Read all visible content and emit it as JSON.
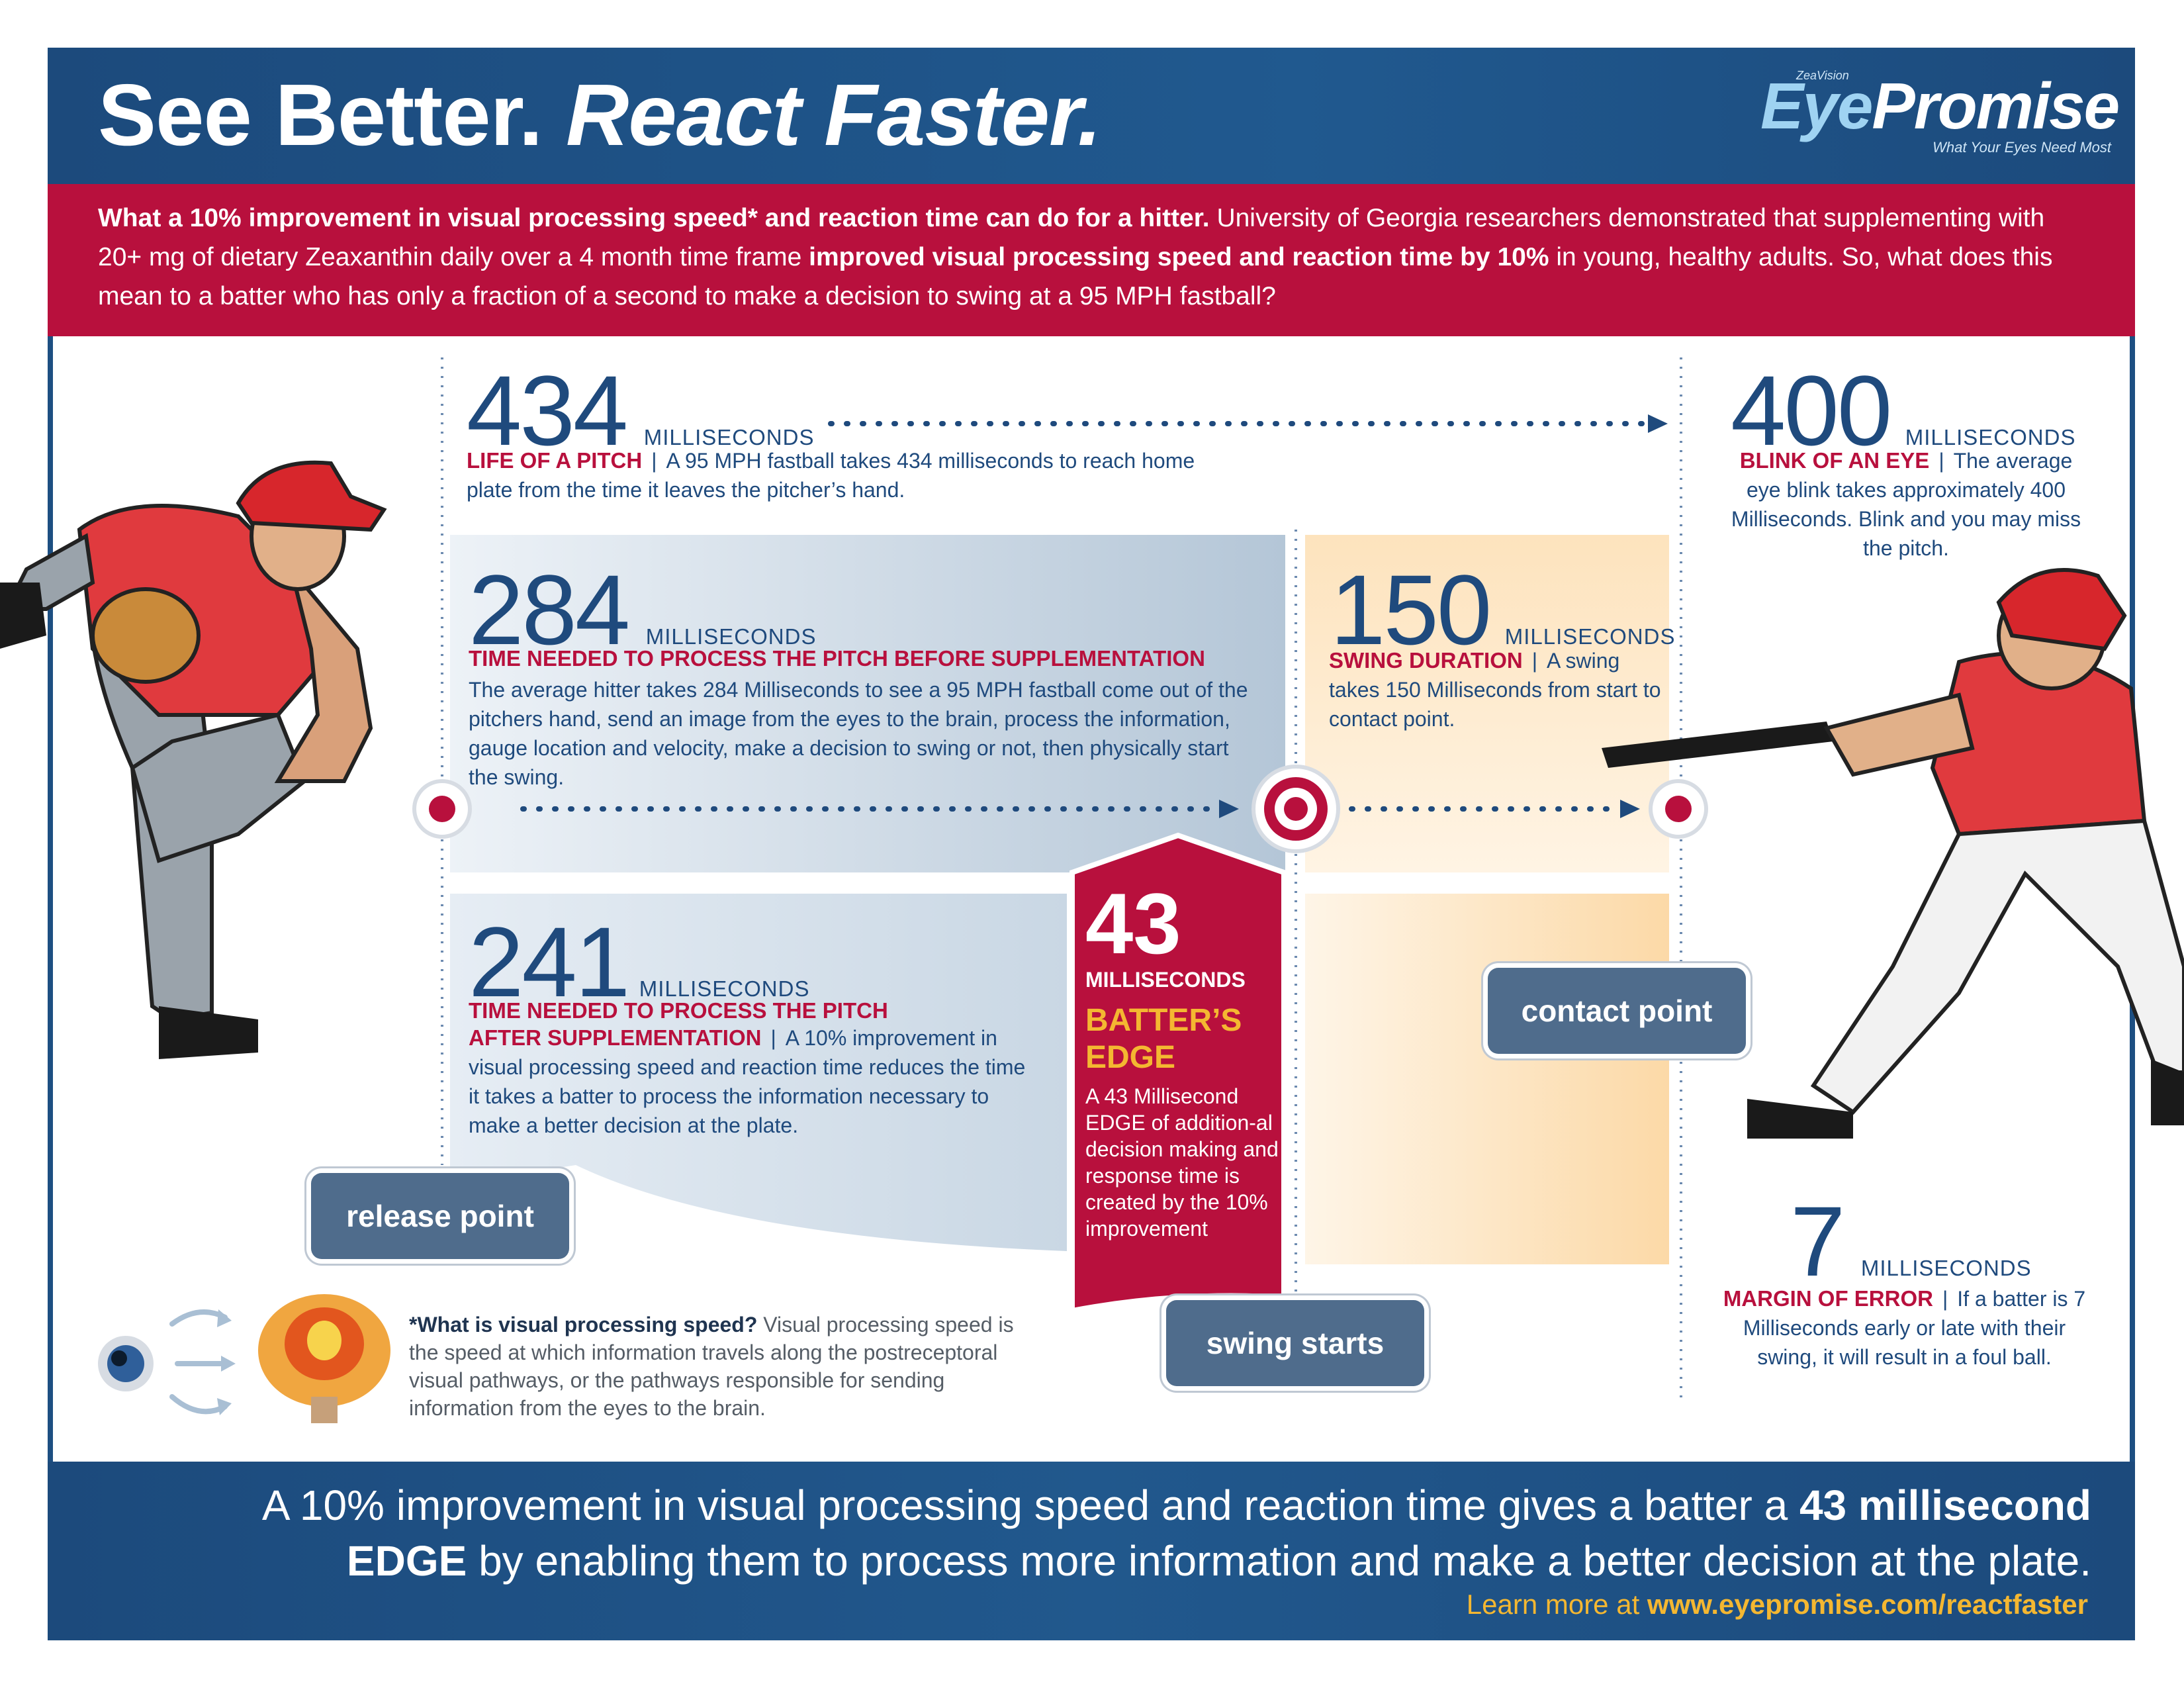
{
  "header": {
    "title_plain": "See Better. ",
    "title_italic": "React Faster.",
    "logo_super": "ZeaVision",
    "logo_brand_eye": "Eye",
    "logo_brand_promise": "Promise",
    "logo_tagline": "What Your Eyes Need Most"
  },
  "intro": {
    "bold_lead": "What a 10% improvement in visual processing speed* and reaction time can do for a hitter.",
    "text_a": " University of Georgia researchers demonstrated that supplementing with 20+ mg of dietary Zeaxanthin daily over a 4 month time frame ",
    "bold_mid": "improved visual processing speed and reaction time by 10%",
    "text_b": " in young, healthy adults. So, what does this mean to a batter who has only a fraction of a second to make a decision to swing at a 95 MPH fastball?"
  },
  "stats": {
    "pitch": {
      "number": "434",
      "unit": "MILLISECONDS",
      "label": "LIFE OF A PITCH",
      "sep": "|",
      "text": "A 95 MPH fastball takes 434 milliseconds to reach home plate from the time it leaves the pitcher’s hand."
    },
    "blink": {
      "number": "400",
      "unit": "MILLISECONDS",
      "label": "BLINK OF AN EYE",
      "sep": "|",
      "text": "The average eye blink takes approximately 400 Milliseconds. Blink and you may miss the pitch."
    },
    "before": {
      "number": "284",
      "unit": "MILLISECONDS",
      "label": "TIME NEEDED TO PROCESS THE PITCH BEFORE SUPPLEMENTATION",
      "text": "The average hitter takes 284 Milliseconds to see a 95 MPH fastball come out of the pitchers hand, send an image from the eyes to the brain, process the information, gauge location and velocity, make a decision to swing or not, then physically start the swing."
    },
    "swing": {
      "number": "150",
      "unit": "MILLISECONDS",
      "label": "SWING DURATION",
      "sep": "|",
      "text": "A swing takes 150 Milliseconds from start to contact point."
    },
    "after": {
      "number": "241",
      "unit": "MILLISECONDS",
      "label_line1": "TIME NEEDED TO PROCESS THE PITCH",
      "label_line2": "AFTER SUPPLEMENTATION",
      "sep": "|",
      "text": "A 10% improvement in visual processing speed and reaction time reduces the time it takes a batter to process the information necessary to make a better decision at the plate."
    },
    "edge": {
      "number": "43",
      "unit": "MILLISECONDS",
      "title": "BATTER’S EDGE",
      "text": "A 43 Millisecond EDGE of addition-al decision making and response time is created by the 10% improvement"
    },
    "error": {
      "number": "7",
      "unit": "MILLISECONDS",
      "label": "MARGIN OF ERROR",
      "sep": "|",
      "text": "If a batter is 7 Milliseconds early or late with their swing, it will result in a foul ball."
    }
  },
  "markers": {
    "release": "release point",
    "swing_starts": "swing starts",
    "contact": "contact point"
  },
  "footnote": {
    "bold": "*What is visual processing speed?",
    "text": " Visual processing speed is the speed at which information travels along the postreceptoral visual pathways, or the pathways responsible for sending information from the eyes to the brain."
  },
  "footer": {
    "text_a": "A 10% improvement in visual processing speed and reaction time gives a batter a ",
    "bold_a": "43 millisecond EDGE",
    "text_b": " by enabling them to process more information and make a better decision at the plate.",
    "learn_prefix": "Learn more at ",
    "learn_url": "www.eyepromise.com/reactfaster"
  },
  "colors": {
    "navy": "#1d4f82",
    "crimson": "#b8103d",
    "gold": "#f4b731",
    "slate": "#4f6c8c"
  }
}
